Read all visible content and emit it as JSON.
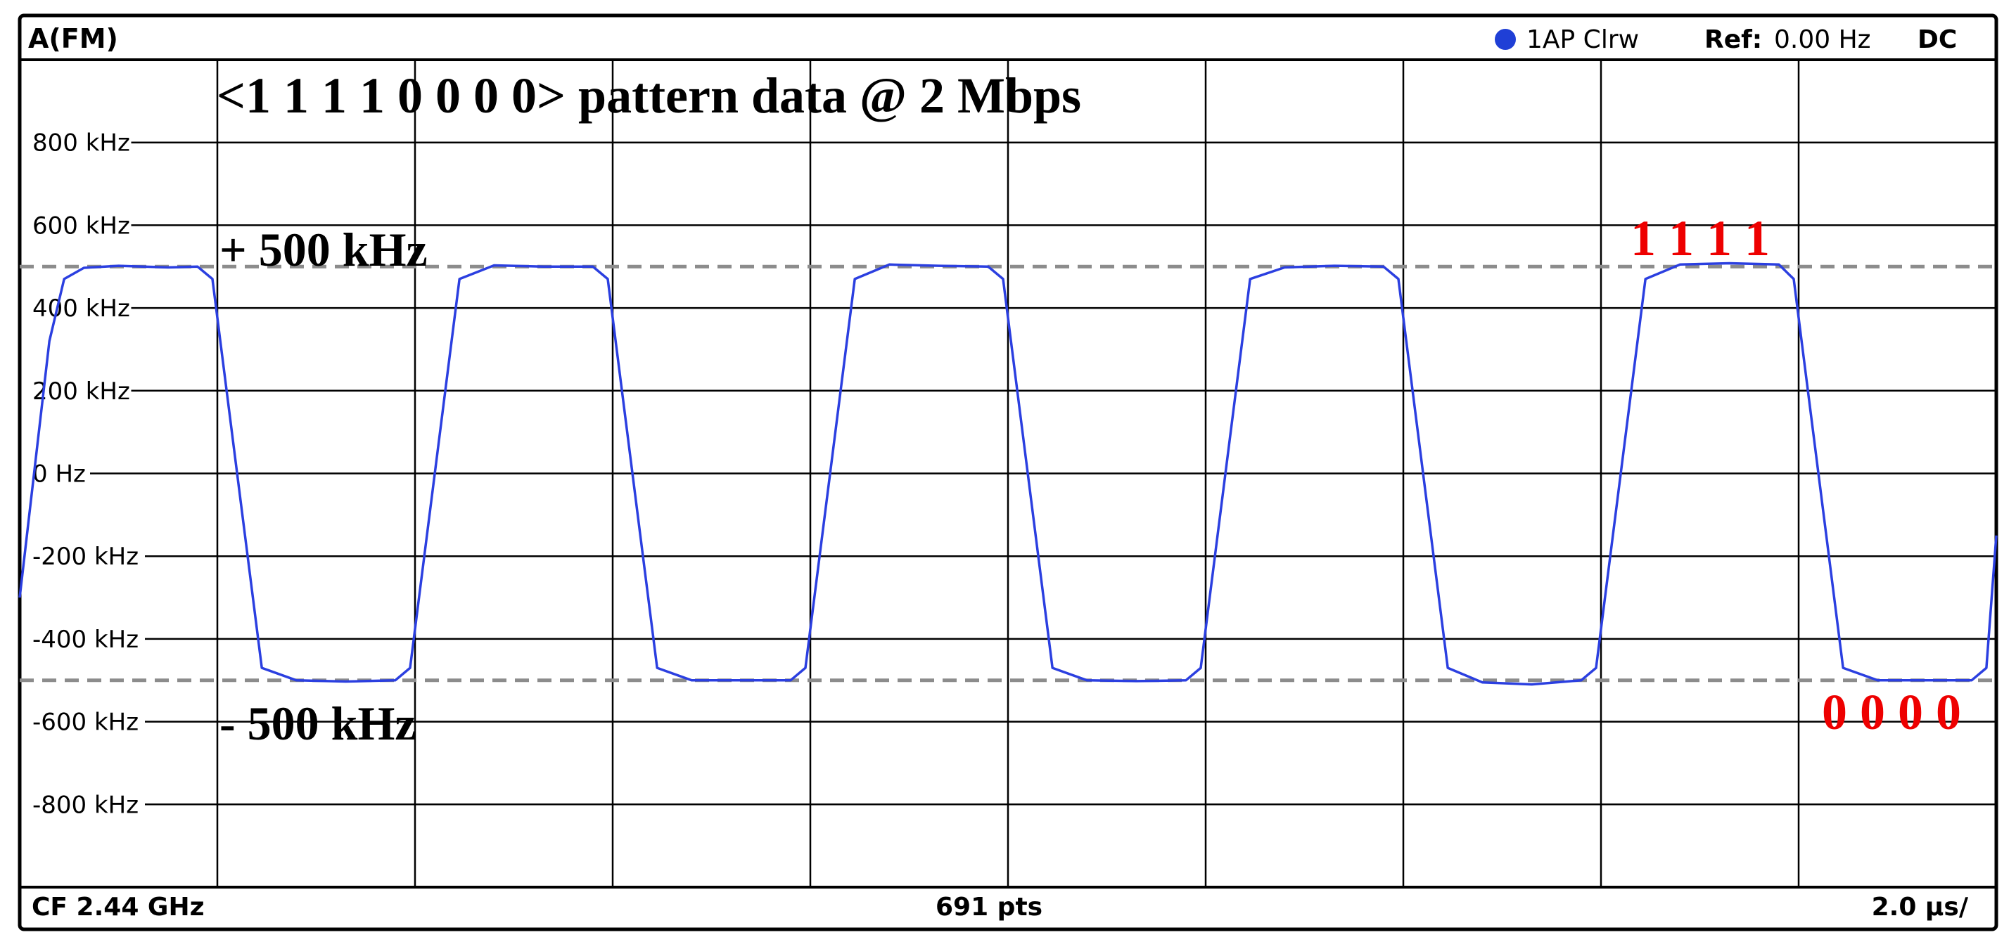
{
  "header": {
    "trace_title": "A(FM)",
    "trace_info": "1AP Clrw",
    "ref_label": "Ref:",
    "ref_value": "0.00 Hz",
    "coupling": "DC"
  },
  "footer": {
    "center_freq": "CF 2.44 GHz",
    "points": "691 pts",
    "time_per_div": "2.0 μs/"
  },
  "annotations": {
    "pattern_title": "<1 1 1 1 0 0 0 0> pattern data @ 2 Mbps",
    "plus_label": "+ 500 kHz",
    "minus_label": "- 500 kHz",
    "ones_label": "1 1 1 1",
    "zeros_label": "0 0 0 0"
  },
  "colors": {
    "trace": "#2b3fe0",
    "reference_lines": "#8c8c8c",
    "bit_labels": "#ee0000",
    "marker_dot": "#1f3fd6",
    "grid": "#000000"
  },
  "chart_data": {
    "type": "line",
    "xlabel": "",
    "ylabel": "",
    "x_unit": "μs",
    "y_unit": "kHz",
    "xlim": [
      0,
      20
    ],
    "ylim": [
      -1000,
      1000
    ],
    "y_ticks": [
      800,
      600,
      400,
      200,
      0,
      -200,
      -400,
      -600,
      -800
    ],
    "y_tick_labels": [
      "800 kHz",
      "600 kHz",
      "400 kHz",
      "200 kHz",
      "0 Hz",
      "-200 kHz",
      "-400 kHz",
      "-600 kHz",
      "-800 kHz"
    ],
    "reference_lines": [
      500,
      -500
    ],
    "grid": true,
    "legend": "none",
    "series": [
      {
        "x": [
          0.0,
          0.3,
          0.45,
          0.65,
          1.0,
          1.5,
          1.8,
          1.95,
          2.2,
          2.45,
          2.8,
          3.3,
          3.8,
          3.95,
          4.2,
          4.45,
          4.8,
          5.3,
          5.8,
          5.95,
          6.2,
          6.45,
          6.8,
          7.3,
          7.8,
          7.95,
          8.2,
          8.45,
          8.8,
          9.3,
          9.8,
          9.95,
          10.2,
          10.45,
          10.8,
          11.3,
          11.8,
          11.95,
          12.2,
          12.45,
          12.8,
          13.3,
          13.8,
          13.95,
          14.2,
          14.45,
          14.8,
          15.3,
          15.8,
          15.95,
          16.2,
          16.45,
          16.8,
          17.3,
          17.8,
          17.95,
          18.2,
          18.45,
          18.8,
          19.3,
          19.75,
          19.9,
          20.0
        ],
        "y": [
          -300,
          320,
          470,
          497,
          502,
          498,
          500,
          470,
          0,
          -470,
          -500,
          -503,
          -500,
          -470,
          0,
          470,
          503,
          500,
          500,
          470,
          0,
          -470,
          -500,
          -500,
          -500,
          -470,
          0,
          470,
          505,
          502,
          500,
          470,
          0,
          -470,
          -500,
          -502,
          -500,
          -470,
          0,
          470,
          498,
          502,
          500,
          470,
          0,
          -470,
          -505,
          -510,
          -500,
          -470,
          0,
          470,
          505,
          508,
          505,
          470,
          0,
          -470,
          -500,
          -500,
          -500,
          -470,
          -150
        ]
      }
    ]
  }
}
